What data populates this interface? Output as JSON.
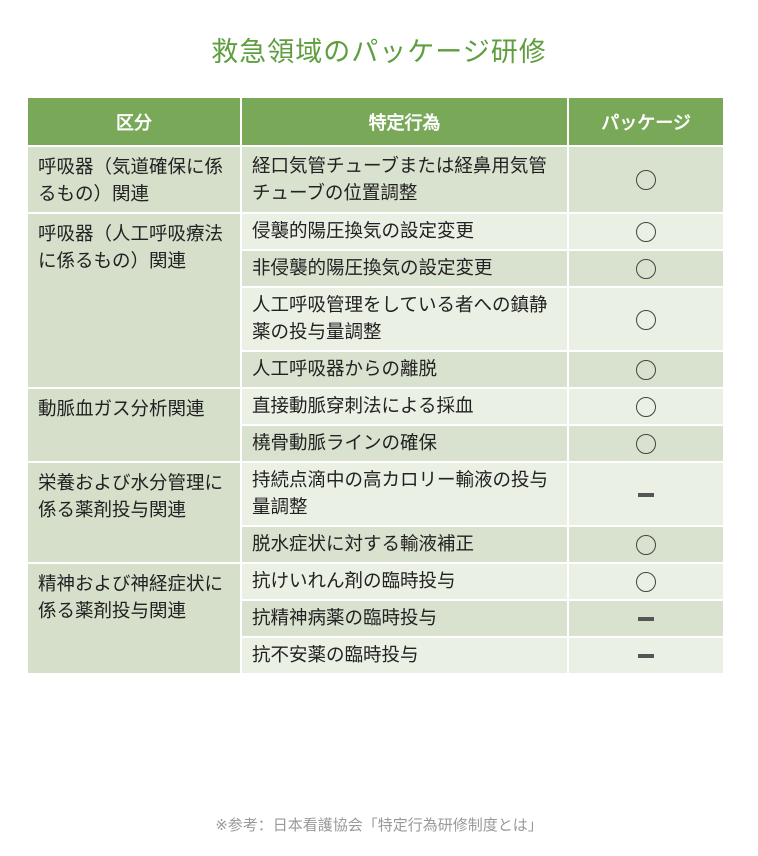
{
  "title": "救急領域のパッケージ研修",
  "headers": [
    "区分",
    "特定行為",
    "パッケージ"
  ],
  "colors": {
    "header": "#79a958",
    "title": "#5e9e3e",
    "category_bg": "#d5dfca",
    "row_dark": "#d9e2cf",
    "row_light": "#eaf0e4"
  },
  "groups": [
    {
      "category": "呼吸器（気道確保に係るもの）関連",
      "rows": [
        {
          "action": "経口気管チューブまたは経鼻用気管チューブの位置調整",
          "package": "○"
        }
      ]
    },
    {
      "category": "呼吸器（人工呼吸療法に係るもの）関連",
      "rows": [
        {
          "action": "侵襲的陽圧換気の設定変更",
          "package": "○"
        },
        {
          "action": "非侵襲的陽圧換気の設定変更",
          "package": "○"
        },
        {
          "action": "人工呼吸管理をしている者への鎮静薬の投与量調整",
          "package": "○"
        },
        {
          "action": "人工呼吸器からの離脱",
          "package": "○"
        }
      ]
    },
    {
      "category": "動脈血ガス分析関連",
      "rows": [
        {
          "action": "直接動脈穿刺法による採血",
          "package": "○"
        },
        {
          "action": "橈骨動脈ラインの確保",
          "package": "○"
        }
      ]
    },
    {
      "category": "栄養および水分管理に係る薬剤投与関連",
      "rows": [
        {
          "action": "持続点滴中の高カロリー輸液の投与量調整",
          "package": "－"
        },
        {
          "action": "脱水症状に対する輸液補正",
          "package": "○"
        }
      ]
    },
    {
      "category": "精神および神経症状に係る薬剤投与関連",
      "rows": [
        {
          "action": "抗けいれん剤の臨時投与",
          "package": "○"
        },
        {
          "action": "抗精神病薬の臨時投与",
          "package": "－"
        },
        {
          "action": "抗不安薬の臨時投与",
          "package": "－"
        }
      ]
    }
  ],
  "note": "※参考：日本看護協会「特定行為研修制度とは」"
}
